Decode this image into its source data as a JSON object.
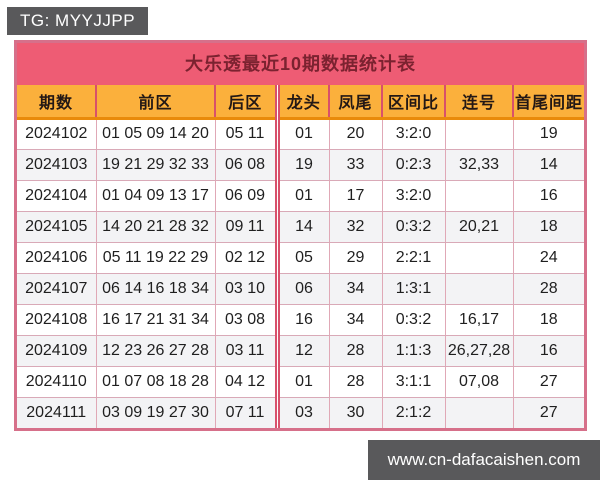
{
  "top_banner": {
    "text": "TG: MYYJJPP"
  },
  "chart_data": {
    "type": "table",
    "title": "大乐透最近10期数据统计表",
    "columns": [
      "期数",
      "前区",
      "后区",
      "龙头",
      "凤尾",
      "区间比",
      "连号",
      "首尾间距"
    ],
    "rows": [
      [
        "2024102",
        "01 05 09 14 20",
        "05 11",
        "01",
        "20",
        "3:2:0",
        "",
        "19"
      ],
      [
        "2024103",
        "19 21 29 32 33",
        "06 08",
        "19",
        "33",
        "0:2:3",
        "32,33",
        "14"
      ],
      [
        "2024104",
        "01 04 09 13 17",
        "06 09",
        "01",
        "17",
        "3:2:0",
        "",
        "16"
      ],
      [
        "2024105",
        "14 20 21 28 32",
        "09 11",
        "14",
        "32",
        "0:3:2",
        "20,21",
        "18"
      ],
      [
        "2024106",
        "05 11 19 22 29",
        "02 12",
        "05",
        "29",
        "2:2:1",
        "",
        "24"
      ],
      [
        "2024107",
        "06 14 16 18 34",
        "03 10",
        "06",
        "34",
        "1:3:1",
        "",
        "28"
      ],
      [
        "2024108",
        "16 17 21 31 34",
        "03 08",
        "16",
        "34",
        "0:3:2",
        "16,17",
        "18"
      ],
      [
        "2024109",
        "12 23 26 27 28",
        "03 11",
        "12",
        "28",
        "1:1:3",
        "26,27,28",
        "16"
      ],
      [
        "2024110",
        "01 07 08 18 28",
        "04 12",
        "01",
        "28",
        "3:1:1",
        "07,08",
        "27"
      ],
      [
        "2024111",
        "03 09 19 27 30",
        "07 11",
        "03",
        "30",
        "2:1:2",
        "",
        "27"
      ]
    ]
  },
  "bottom_banner": {
    "text": "www.cn-dafacaishen.com"
  },
  "colors": {
    "banner_bg": "#59595b",
    "banner_text": "#ffffff",
    "title_bg": "#ee5c74",
    "title_text": "#7b2230",
    "table_border": "#d6708a",
    "header_bg": "#fbb03c",
    "header_divider": "#d8506b",
    "header_underline": "#e98a0a",
    "row_bg": "#ffffff",
    "row_alt_bg": "#f3f3f5",
    "cell_border": "#e0a8b6"
  }
}
